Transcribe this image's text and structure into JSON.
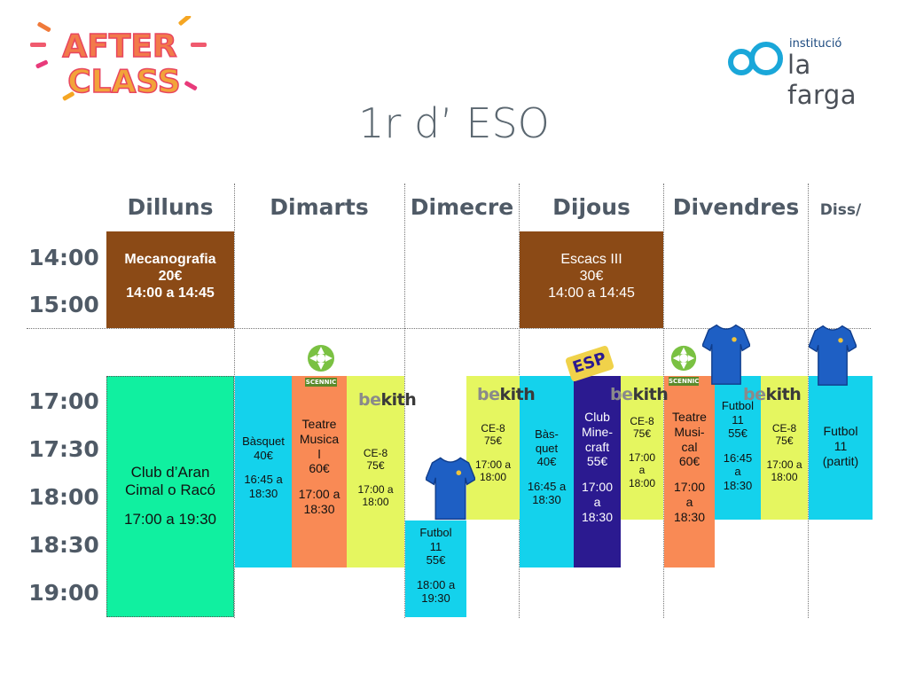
{
  "logos": {
    "afterclass": {
      "line1": "AFTER",
      "line2": "CLASS"
    },
    "institution": {
      "small": "institució",
      "big": "la farga"
    }
  },
  "title": "1r d’ ESO",
  "days": [
    "Dilluns",
    "Dimarts",
    "Dimecre",
    "Dijous",
    "Divendres",
    "Diss/"
  ],
  "times": [
    "14:00",
    "15:00",
    "17:00",
    "17:30",
    "18:00",
    "18:30",
    "19:00"
  ],
  "activities": {
    "mecanografia": {
      "lines": [
        "Mecanografia",
        "20€",
        "14:00 a 14:45"
      ],
      "color": "#8b4a16"
    },
    "escacs": {
      "lines": [
        "Escacs III",
        "30€",
        "14:00 a 14:45"
      ],
      "color": "#8b4a16"
    },
    "club_aran": {
      "lines": [
        "Club d’Aran",
        "Cimal o Racó",
        "",
        "17:00 a 19:30"
      ],
      "color": "#10f0a0"
    },
    "basquet_dimarts": {
      "lines": [
        "Bàsquet",
        "40€",
        "",
        "16:45 a",
        "18:30"
      ],
      "color": "#14d2ec"
    },
    "teatre_dimarts": {
      "lines": [
        "Teatre",
        "Musica",
        "l",
        "60€",
        "",
        "17:00 a",
        "18:30"
      ],
      "color": "#f98a55"
    },
    "ce8_dimarts": {
      "lines": [
        "CE-8",
        "75€",
        "",
        "17:00 a",
        "18:00"
      ],
      "color": "#e5f660"
    },
    "futbol_dimecres": {
      "lines": [
        "Futbol",
        "11",
        "55€",
        "",
        "18:00 a",
        "19:30"
      ],
      "color": "#14d2ec"
    },
    "ce8_dimecres": {
      "lines": [
        "CE-8",
        "75€",
        "",
        "17:00 a",
        "18:00"
      ],
      "color": "#e5f660"
    },
    "basquet_dijous": {
      "lines": [
        "Bàs-",
        "quet",
        "40€",
        "",
        "16:45 a",
        "18:30"
      ],
      "color": "#14d2ec"
    },
    "minecraft_dijous": {
      "lines": [
        "Club",
        "Mine-",
        "craft",
        "55€",
        "",
        "17:00",
        "a",
        "18:30"
      ],
      "color": "#2b1a90"
    },
    "ce8_dijous": {
      "lines": [
        "CE-8",
        "75€",
        "",
        "17:00",
        "a",
        "18:00"
      ],
      "color": "#e5f660"
    },
    "teatre_divendres": {
      "lines": [
        "Teatre",
        "Musi-",
        "cal",
        "60€",
        "",
        "17:00",
        "a",
        "18:30"
      ],
      "color": "#f98a55"
    },
    "futbol_divendres": {
      "lines": [
        "Futbol",
        "11",
        "55€",
        "",
        "16:45",
        "a",
        "18:30"
      ],
      "color": "#14d2ec"
    },
    "ce8_divendres": {
      "lines": [
        "CE-8",
        "75€",
        "",
        "17:00 a",
        "18:00"
      ],
      "color": "#e5f660"
    },
    "futbol_dissabte": {
      "lines": [
        "Futbol",
        "11",
        "(partit)"
      ],
      "color": "#14d2ec"
    }
  },
  "badges": {
    "scennic": "SCENNIC",
    "bekith_be": "be",
    "bekith_kith": "kith",
    "esp": "ESP"
  }
}
